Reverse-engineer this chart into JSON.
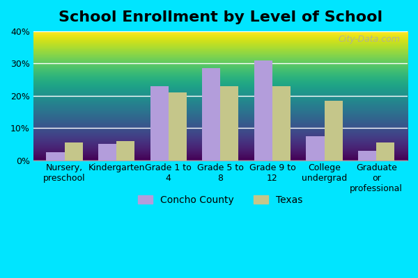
{
  "title": "School Enrollment by Level of School",
  "categories": [
    "Nursery,\npreschool",
    "Kindergarten",
    "Grade 1 to\n4",
    "Grade 5 to\n8",
    "Grade 9 to\n12",
    "College\nundergrad",
    "Graduate\nor\nprofessional"
  ],
  "concho_values": [
    2.5,
    5.0,
    23.0,
    28.5,
    31.0,
    7.5,
    3.0
  ],
  "texas_values": [
    5.5,
    6.0,
    21.0,
    23.0,
    23.0,
    18.5,
    5.5
  ],
  "concho_color": "#b39ddb",
  "texas_color": "#c5c68a",
  "background_color": "#e8f5e9",
  "plot_bg_top": "#e8f0f5",
  "plot_bg_bottom": "#e8f5e9",
  "ylim": [
    0,
    40
  ],
  "yticks": [
    0,
    10,
    20,
    30,
    40
  ],
  "ylabel_format": "{}%",
  "legend_labels": [
    "Concho County",
    "Texas"
  ],
  "title_fontsize": 16,
  "tick_fontsize": 9,
  "bar_width": 0.35,
  "outer_bg": "#00e5ff"
}
